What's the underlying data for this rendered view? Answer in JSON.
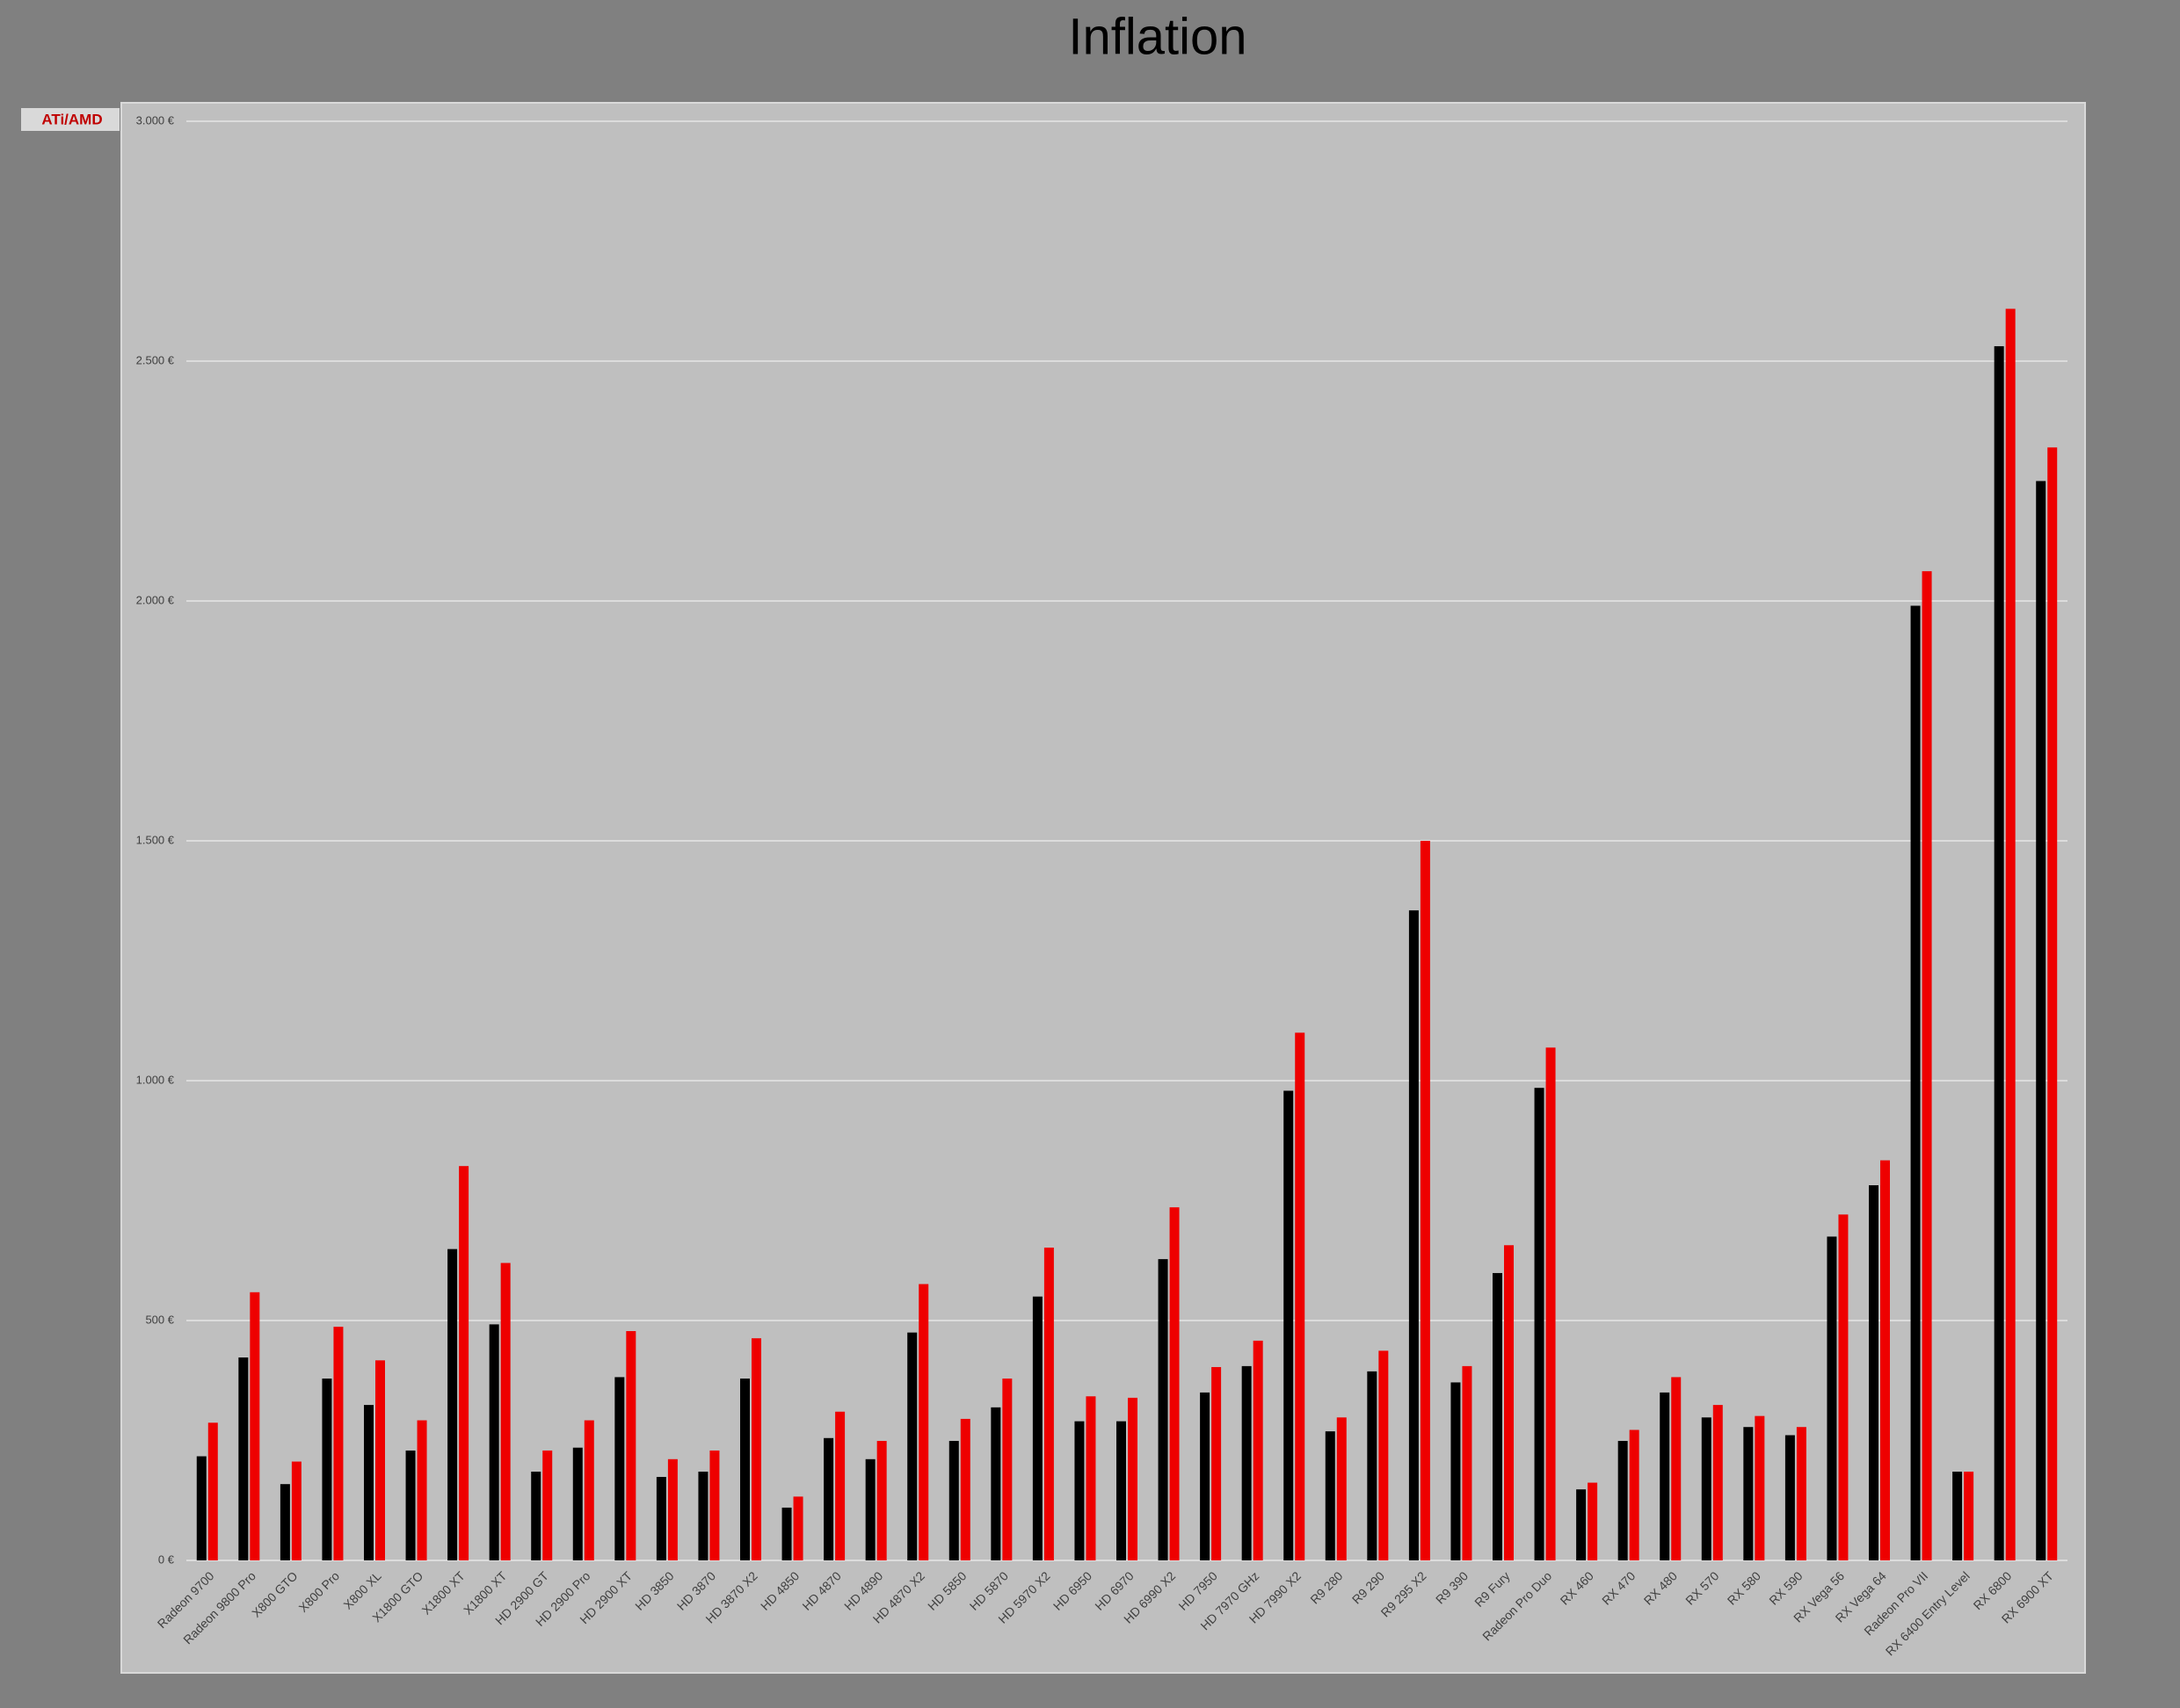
{
  "chart_data": {
    "type": "bar",
    "title": "Inflation",
    "annotation": "ATi/AMD",
    "categories": [
      "Radeon 9700",
      "Radeon 9800 Pro",
      "X800 GTO",
      "X800 Pro",
      "X800 XL",
      "X1800 GTO",
      "X1800 XT",
      "X1800 XT",
      "HD 2900 GT",
      "HD 2900 Pro",
      "HD 2900 XT",
      "HD 3850",
      "HD 3870",
      "HD 3870 X2",
      "HD 4850",
      "HD 4870",
      "HD 4890",
      "HD 4870 X2",
      "HD 5850",
      "HD 5870",
      "HD 5970 X2",
      "HD 6950",
      "HD 6970",
      "HD 6990 X2",
      "HD 7950",
      "HD 7970 GHz",
      "HD 7990 X2",
      "R9 280",
      "R9 290",
      "R9 295 X2",
      "R9 390",
      "R9 Fury",
      "Radeon Pro Duo",
      "RX 460",
      "RX 470",
      "RX 480",
      "RX 570",
      "RX 580",
      "RX 590",
      "RX Vega 56",
      "RX Vega 64",
      "Radeon Pro VII",
      "RX 6400 Entry Level",
      "RX 6800",
      "RX 6900 XT"
    ],
    "series": [
      {
        "color": "#000000",
        "values": [
          217,
          423,
          159,
          379,
          324,
          229,
          649,
          492,
          185,
          235,
          382,
          174,
          185,
          379,
          110,
          255,
          211,
          475,
          249,
          319,
          550,
          290,
          290,
          628,
          350,
          405,
          979,
          269,
          394,
          1355,
          371,
          599,
          985,
          148,
          249,
          350,
          298,
          278,
          261,
          675,
          782,
          1990,
          185,
          2531,
          2250
        ]
      },
      {
        "color": "#ee0000",
        "values": [
          287,
          559,
          206,
          487,
          417,
          292,
          822,
          620,
          229,
          292,
          478,
          211,
          229,
          463,
          133,
          310,
          249,
          576,
          295,
          379,
          652,
          342,
          339,
          736,
          403,
          458,
          1100,
          298,
          437,
          1500,
          405,
          657,
          1069,
          162,
          272,
          382,
          324,
          301,
          278,
          721,
          834,
          2062,
          185,
          2609,
          2320
        ]
      }
    ],
    "ylim": [
      0,
      3000
    ],
    "yticks": [
      {
        "value": 0,
        "label": "0 €"
      },
      {
        "value": 500,
        "label": "500 €"
      },
      {
        "value": 1000,
        "label": "1.000 €"
      },
      {
        "value": 1500,
        "label": "1.500 €"
      },
      {
        "value": 2000,
        "label": "2.000 €"
      },
      {
        "value": 2500,
        "label": "2.500 €"
      },
      {
        "value": 3000,
        "label": "3.000 €"
      }
    ],
    "grid": true
  }
}
